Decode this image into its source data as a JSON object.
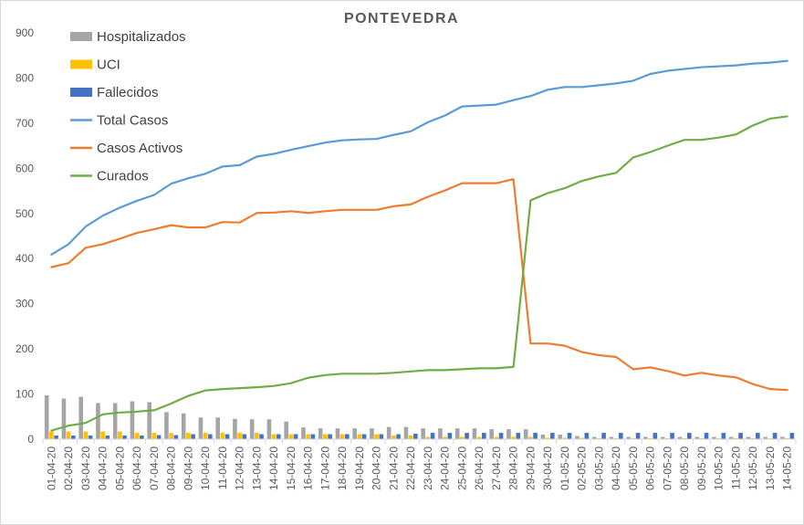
{
  "chart_data": {
    "type": "bar+line",
    "title": "PONTEVEDRA",
    "ylim": [
      0,
      900
    ],
    "yticks": [
      0,
      100,
      200,
      300,
      400,
      500,
      600,
      700,
      800,
      900
    ],
    "grid": false,
    "legend_position": "top-left",
    "categories": [
      "01-04-20",
      "02-04-20",
      "03-04-20",
      "04-04-20",
      "05-04-20",
      "06-04-20",
      "07-04-20",
      "08-04-20",
      "09-04-20",
      "10-04-20",
      "11-04-20",
      "12-04-20",
      "13-04-20",
      "14-04-20",
      "15-04-20",
      "16-04-20",
      "17-04-20",
      "18-04-20",
      "19-04-20",
      "20-04-20",
      "21-04-20",
      "22-04-20",
      "23-04-20",
      "24-04-20",
      "25-04-20",
      "26-04-20",
      "27-04-20",
      "28-04-20",
      "29-04-20",
      "30-04-20",
      "01-05-20",
      "02-05-20",
      "03-05-20",
      "04-05-20",
      "05-05-20",
      "06-05-20",
      "07-05-20",
      "08-05-20",
      "09-05-20",
      "10-05-20",
      "11-05-20",
      "12-05-20",
      "13-05-20",
      "14-05-20"
    ],
    "bar_series": [
      {
        "name": "Hospitalizados",
        "color": "#a5a5a5",
        "values": [
          97,
          90,
          94,
          80,
          80,
          84,
          82,
          60,
          57,
          48,
          48,
          45,
          44,
          44,
          39,
          26,
          24,
          24,
          24,
          24,
          27,
          27,
          24,
          24,
          24,
          24,
          22,
          22,
          22,
          10,
          10,
          7,
          5,
          5,
          5,
          5,
          5,
          5,
          5,
          5,
          5,
          5,
          5,
          5
        ]
      },
      {
        "name": "UCI",
        "color": "#ffc000",
        "values": [
          17,
          17,
          17,
          17,
          17,
          14,
          14,
          14,
          14,
          14,
          14,
          14,
          14,
          11,
          11,
          11,
          11,
          11,
          11,
          11,
          8,
          8,
          5,
          5,
          5,
          5,
          5,
          5,
          5,
          3,
          3,
          3,
          2,
          2,
          2,
          2,
          2,
          2,
          2,
          2,
          2,
          2,
          2,
          2
        ]
      },
      {
        "name": "Fallecidos",
        "color": "#4472c4",
        "values": [
          8,
          8,
          8,
          8,
          8,
          8,
          9,
          9,
          11,
          11,
          11,
          11,
          11,
          11,
          11,
          11,
          11,
          11,
          11,
          11,
          11,
          12,
          14,
          14,
          14,
          14,
          14,
          14,
          14,
          14,
          14,
          14,
          14,
          14,
          14,
          14,
          14,
          14,
          14,
          14,
          14,
          14,
          14,
          14
        ]
      }
    ],
    "line_series": [
      {
        "name": "Total Casos",
        "color": "#5b9bd5",
        "values": [
          409,
          432,
          471,
          495,
          513,
          528,
          541,
          566,
          578,
          588,
          604,
          607,
          626,
          632,
          641,
          649,
          657,
          662,
          664,
          665,
          674,
          682,
          702,
          717,
          737,
          739,
          741,
          751,
          760,
          774,
          780,
          780,
          784,
          788,
          794,
          809,
          816,
          820,
          824,
          826,
          828,
          832,
          834,
          838
        ]
      },
      {
        "name": "Casos Activos",
        "color": "#ed7d31",
        "values": [
          381,
          390,
          424,
          432,
          444,
          457,
          465,
          474,
          469,
          469,
          481,
          480,
          501,
          502,
          505,
          501,
          505,
          508,
          508,
          508,
          516,
          520,
          537,
          551,
          567,
          567,
          567,
          576,
          212,
          212,
          207,
          193,
          186,
          182,
          155,
          159,
          151,
          141,
          147,
          141,
          137,
          122,
          111,
          109
        ]
      },
      {
        "name": "Curados",
        "color": "#70ad47",
        "values": [
          19,
          30,
          36,
          55,
          59,
          61,
          64,
          79,
          96,
          108,
          111,
          113,
          115,
          118,
          124,
          136,
          142,
          145,
          145,
          145,
          147,
          150,
          153,
          153,
          155,
          157,
          157,
          160,
          529,
          545,
          556,
          572,
          582,
          590,
          624,
          636,
          650,
          663,
          663,
          668,
          675,
          695,
          710,
          715
        ]
      }
    ]
  }
}
